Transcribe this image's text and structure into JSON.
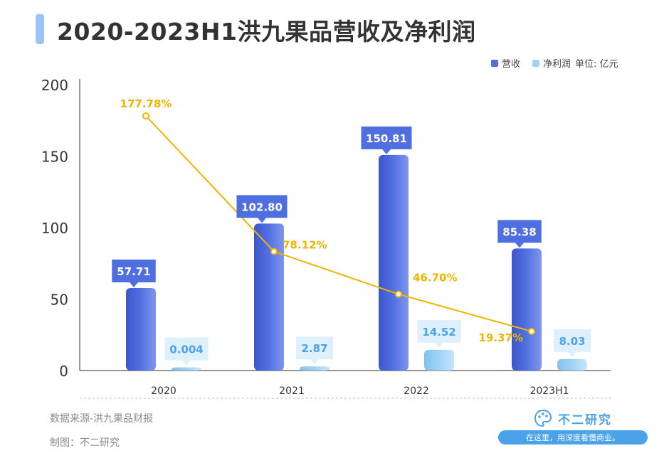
{
  "title": "2020-2023H1洪九果品营收及净利润",
  "legend": {
    "revenue": "营收",
    "net_profit": "净利润",
    "unit": "单位: 亿元"
  },
  "colors": {
    "revenue": "#4f6ee0",
    "net_profit": "#9fd2f7",
    "growth": "#f0b400",
    "title_accent": "#9cc3f5"
  },
  "chart_data": {
    "type": "bar",
    "categories": [
      "2020",
      "2021",
      "2022",
      "2023H1"
    ],
    "series": [
      {
        "name": "营收",
        "values": [
          57.71,
          102.8,
          150.81,
          85.38
        ],
        "labels": [
          "57.71",
          "102.80",
          "150.81",
          "85.38"
        ]
      },
      {
        "name": "净利润",
        "values": [
          0.004,
          2.87,
          14.52,
          8.03
        ],
        "labels": [
          "0.004",
          "2.87",
          "14.52",
          "8.03"
        ]
      }
    ],
    "growth_line": {
      "values": [
        177.78,
        78.12,
        46.7,
        19.37
      ],
      "labels": [
        "177.78%",
        "78.12%",
        "46.70%",
        "19.37%"
      ]
    },
    "yticks": [
      "0",
      "50",
      "100",
      "150",
      "200"
    ],
    "ylim": [
      0,
      200
    ],
    "grid": false,
    "legend_position": "top-right"
  },
  "footer": {
    "source": "数据来源-洪九果品财报",
    "made_by": "制图：不二研究"
  },
  "brand": {
    "name": "不二研究",
    "slogan": "在这里，用深度看懂商业。"
  }
}
